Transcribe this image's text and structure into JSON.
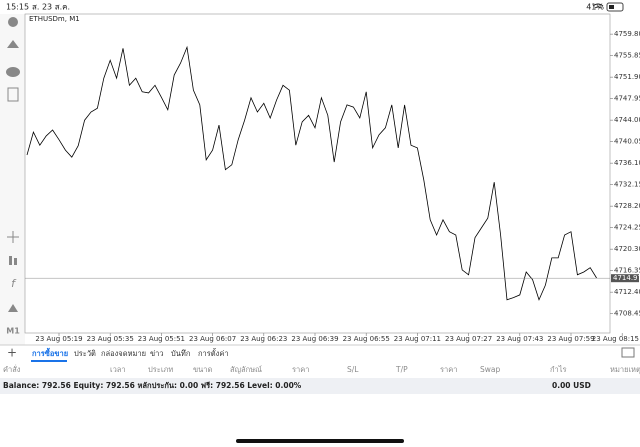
{
  "status_bar": {
    "time": "15:15",
    "date": "ส. 23 ส.ค.",
    "battery": "41%"
  },
  "toolbar": {
    "timeframe": "M1"
  },
  "chart_data": {
    "type": "line",
    "title": "ETHUSDm, M1",
    "color": "#000000",
    "categories": [
      null,
      null,
      null,
      null,
      null,
      "23 Aug 05:19",
      null,
      null,
      null,
      null,
      null,
      null,
      null,
      "23 Aug 05:35",
      null,
      null,
      null,
      null,
      null,
      null,
      null,
      "23 Aug 05:51",
      null,
      null,
      null,
      null,
      null,
      null,
      null,
      "23 Aug 06:07",
      null,
      null,
      null,
      null,
      null,
      null,
      null,
      "23 Aug 06:23",
      null,
      null,
      null,
      null,
      null,
      null,
      null,
      "23 Aug 06:39",
      null,
      null,
      null,
      null,
      null,
      null,
      null,
      "23 Aug 06:55",
      null,
      null,
      null,
      null,
      null,
      null,
      null,
      "23 Aug 07:11",
      null,
      null,
      null,
      null,
      null,
      null,
      null,
      "23 Aug 07:27",
      null,
      null,
      null,
      null,
      null,
      null,
      null,
      "23 Aug 07:43",
      null,
      null,
      null,
      null,
      null,
      null,
      null,
      "23 Aug 07:59",
      null,
      null,
      null,
      null,
      null,
      null,
      null,
      "23 Aug 08:15"
    ],
    "values": [
      4737.6,
      4741.8,
      4739.4,
      4741.1,
      4742.2,
      4740.4,
      4738.5,
      4737.2,
      4739.3,
      4744.0,
      4745.5,
      4746.2,
      4751.7,
      4755.0,
      4751.7,
      4757.2,
      4750.4,
      4751.7,
      4749.2,
      4749.0,
      4750.4,
      4748.2,
      4745.9,
      4752.3,
      4754.5,
      4757.4,
      4749.5,
      4746.8,
      4736.7,
      4738.5,
      4743.1,
      4734.9,
      4735.8,
      4740.4,
      4744.0,
      4748.1,
      4745.5,
      4747.1,
      4744.4,
      4747.7,
      4750.4,
      4749.5,
      4739.4,
      4743.7,
      4744.9,
      4742.6,
      4748.1,
      4744.9,
      4736.3,
      4743.7,
      4746.8,
      4746.4,
      4744.4,
      4749.2,
      4738.9,
      4741.3,
      4742.6,
      4746.8,
      4738.9,
      4746.8,
      4739.4,
      4738.9,
      4733.0,
      4725.7,
      4722.9,
      4725.7,
      4723.5,
      4722.9,
      4716.5,
      4715.6,
      4722.4,
      4724.2,
      4726.0,
      4732.6,
      4722.9,
      4711.0,
      4711.4,
      4711.9,
      4716.1,
      4714.7,
      4711.0,
      4713.7,
      4718.7,
      4718.7,
      4722.9,
      4723.5,
      4715.6,
      4716.1,
      4716.9,
      4715.0,
      null,
      null,
      null,
      null
    ],
    "ylim": [
      4704.9,
      4763.5
    ],
    "yticks": [
      {
        "value": 4759.8,
        "label": "4759.80"
      },
      4755.85,
      {
        "value": 4751.9,
        "label": "4751.90"
      },
      4747.95,
      {
        "value": 4744.0,
        "label": "4744.00"
      },
      4740.05,
      {
        "value": 4736.1,
        "label": "4736.10"
      },
      4732.15,
      {
        "value": 4728.2,
        "label": "4728.20"
      },
      4724.25,
      {
        "value": 4720.3,
        "label": "4720.30"
      },
      4716.35,
      {
        "value": 4712.4,
        "label": "4712.40"
      },
      4708.45
    ],
    "current_price": 4714.97
  },
  "tabs": [
    "การซื้อขาย",
    "ประวัติ",
    "กล่องจดหมาย",
    "ข่าว",
    "บันทึก",
    "การตั้งค่า"
  ],
  "table": {
    "headers": [
      "คำสั่ง",
      "เวลา",
      "ประเภท",
      "ขนาด",
      "สัญลักษณ์",
      "ราคา",
      "S/L",
      "T/P",
      "ราคา",
      "Swap",
      "กำไร",
      "หมายเหตุ"
    ]
  },
  "summary": {
    "text": "Balance: 792.56 Equity: 792.56 หลักประกัน: 0.00 ฟรี: 792.56 Level: 0.00%",
    "profit": "0.00 USD"
  }
}
